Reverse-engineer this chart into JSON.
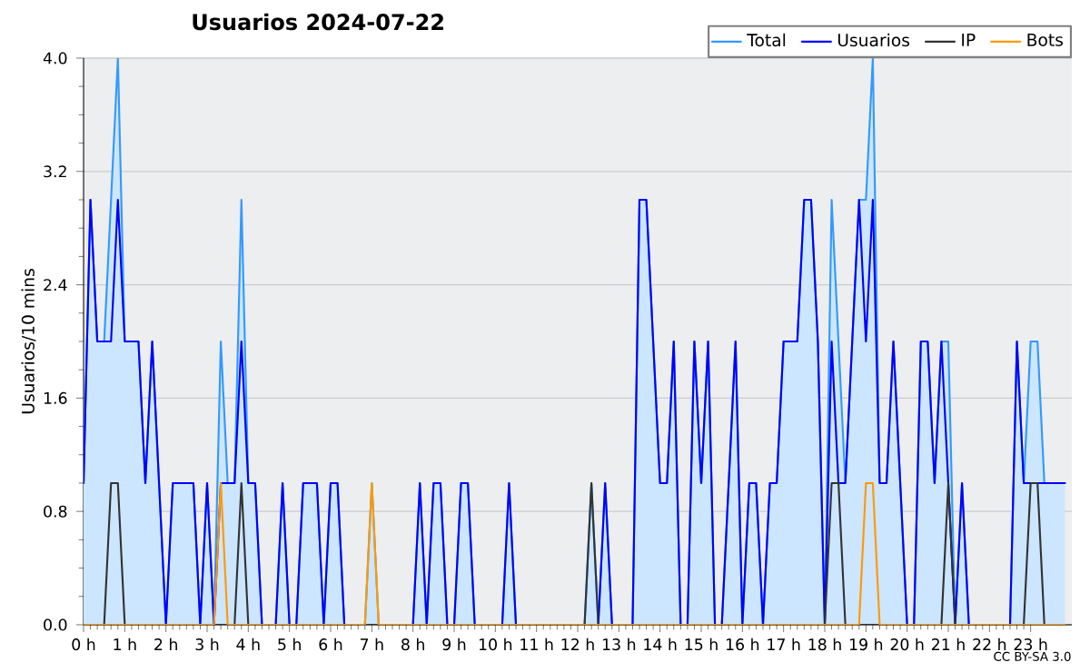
{
  "chart_data": {
    "type": "line",
    "title": "Usuarios 2024-07-22",
    "ylabel": "Usuarios/10 mins",
    "x": [
      0,
      0.167,
      0.333,
      0.5,
      0.667,
      0.833,
      1,
      1.167,
      1.333,
      1.5,
      1.667,
      1.833,
      2,
      2.167,
      2.333,
      2.5,
      2.667,
      2.833,
      3,
      3.167,
      3.333,
      3.5,
      3.667,
      3.833,
      4,
      4.167,
      4.333,
      4.5,
      4.667,
      4.833,
      5,
      5.167,
      5.333,
      5.5,
      5.667,
      5.833,
      6,
      6.167,
      6.333,
      6.5,
      6.667,
      6.833,
      7,
      7.167,
      7.333,
      7.5,
      7.667,
      7.833,
      8,
      8.167,
      8.333,
      8.5,
      8.667,
      8.833,
      9,
      9.167,
      9.333,
      9.5,
      9.667,
      9.833,
      10,
      10.167,
      10.333,
      10.5,
      10.667,
      10.833,
      11,
      11.167,
      11.333,
      11.5,
      11.667,
      11.833,
      12,
      12.167,
      12.333,
      12.5,
      12.667,
      12.833,
      13,
      13.167,
      13.333,
      13.5,
      13.667,
      13.833,
      14,
      14.167,
      14.333,
      14.5,
      14.667,
      14.833,
      15,
      15.167,
      15.333,
      15.5,
      15.667,
      15.833,
      16,
      16.167,
      16.333,
      16.5,
      16.667,
      16.833,
      17,
      17.167,
      17.333,
      17.5,
      17.667,
      17.833,
      18,
      18.167,
      18.333,
      18.5,
      18.667,
      18.833,
      19,
      19.167,
      19.333,
      19.5,
      19.667,
      19.833,
      20,
      20.167,
      20.333,
      20.5,
      20.667,
      20.833,
      21,
      21.167,
      21.333,
      21.5,
      21.667,
      21.833,
      22,
      22.167,
      22.333,
      22.5,
      22.667,
      22.833,
      23,
      23.167,
      23.333,
      23.5,
      23.667,
      23.833
    ],
    "xlim": [
      0,
      24
    ],
    "xticks": [
      {
        "value": 0,
        "label": "0 h"
      },
      {
        "value": 1,
        "label": "1 h"
      },
      {
        "value": 2,
        "label": "2 h"
      },
      {
        "value": 3,
        "label": "3 h"
      },
      {
        "value": 4,
        "label": "4 h"
      },
      {
        "value": 5,
        "label": "5 h"
      },
      {
        "value": 6,
        "label": "6 h"
      },
      {
        "value": 7,
        "label": "7 h"
      },
      {
        "value": 8,
        "label": "8 h"
      },
      {
        "value": 9,
        "label": "9 h"
      },
      {
        "value": 10,
        "label": "10 h"
      },
      {
        "value": 11,
        "label": "11 h"
      },
      {
        "value": 12,
        "label": "12 h"
      },
      {
        "value": 13,
        "label": "13 h"
      },
      {
        "value": 14,
        "label": "14 h"
      },
      {
        "value": 15,
        "label": "15 h"
      },
      {
        "value": 16,
        "label": "16 h"
      },
      {
        "value": 17,
        "label": "17 h"
      },
      {
        "value": 18,
        "label": "18 h"
      },
      {
        "value": 19,
        "label": "19 h"
      },
      {
        "value": 20,
        "label": "20 h"
      },
      {
        "value": 21,
        "label": "21 h"
      },
      {
        "value": 22,
        "label": "22 h"
      },
      {
        "value": 23,
        "label": "23 h"
      }
    ],
    "ylim": [
      0,
      4
    ],
    "yticks": [
      {
        "value": 0,
        "label": "0.0"
      },
      {
        "value": 0.8,
        "label": "0.8"
      },
      {
        "value": 1.6,
        "label": "1.6"
      },
      {
        "value": 2.4,
        "label": "2.4"
      },
      {
        "value": 3.2,
        "label": "3.2"
      },
      {
        "value": 4,
        "label": "4.0"
      }
    ],
    "grid": "y",
    "legend": "top right",
    "series": [
      {
        "name": "Total",
        "type": "area",
        "color": "#3399ff",
        "values": [
          1,
          3,
          2,
          2,
          3,
          4,
          2,
          2,
          2,
          1,
          2,
          1,
          0,
          1,
          1,
          1,
          1,
          0,
          1,
          0,
          2,
          1,
          1,
          3,
          1,
          1,
          0,
          0,
          0,
          1,
          0,
          0,
          1,
          1,
          1,
          0,
          1,
          1,
          0,
          0,
          0,
          0,
          1,
          0,
          0,
          0,
          0,
          0,
          0,
          1,
          0,
          1,
          1,
          0,
          0,
          1,
          1,
          0,
          0,
          0,
          0,
          0,
          1,
          0,
          0,
          0,
          0,
          0,
          0,
          0,
          0,
          0,
          0,
          0,
          1,
          0,
          1,
          0,
          0,
          0,
          0,
          3,
          3,
          2,
          1,
          1,
          2,
          0,
          0,
          2,
          1,
          2,
          0,
          0,
          1,
          2,
          0,
          1,
          1,
          0,
          1,
          1,
          2,
          2,
          2,
          3,
          3,
          2,
          0,
          3,
          2,
          1,
          2,
          3,
          3,
          4,
          1,
          1,
          2,
          1,
          0,
          0,
          2,
          2,
          1,
          2,
          2,
          0,
          1,
          0,
          0,
          0,
          0,
          0,
          0,
          0,
          2,
          1,
          2,
          2,
          1,
          1,
          1,
          1
        ]
      },
      {
        "name": "Usuarios",
        "type": "line",
        "color": "#0000ff",
        "values": [
          1,
          3,
          2,
          2,
          2,
          3,
          2,
          2,
          2,
          1,
          2,
          1,
          0,
          1,
          1,
          1,
          1,
          0,
          1,
          0,
          1,
          1,
          1,
          2,
          1,
          1,
          0,
          0,
          0,
          1,
          0,
          0,
          1,
          1,
          1,
          0,
          1,
          1,
          0,
          0,
          0,
          0,
          0,
          0,
          0,
          0,
          0,
          0,
          0,
          1,
          0,
          1,
          1,
          0,
          0,
          1,
          1,
          0,
          0,
          0,
          0,
          0,
          1,
          0,
          0,
          0,
          0,
          0,
          0,
          0,
          0,
          0,
          0,
          0,
          0,
          0,
          1,
          0,
          0,
          0,
          0,
          3,
          3,
          2,
          1,
          1,
          2,
          0,
          0,
          2,
          1,
          2,
          0,
          0,
          1,
          2,
          0,
          1,
          1,
          0,
          1,
          1,
          2,
          2,
          2,
          3,
          3,
          2,
          0,
          2,
          1,
          1,
          2,
          3,
          2,
          3,
          1,
          1,
          2,
          1,
          0,
          0,
          2,
          2,
          1,
          2,
          1,
          0,
          1,
          0,
          0,
          0,
          0,
          0,
          0,
          0,
          2,
          1,
          1,
          1,
          1,
          1,
          1,
          1
        ]
      },
      {
        "name": "IP",
        "type": "line",
        "color": "#333333",
        "values": [
          0,
          0,
          0,
          0,
          1,
          1,
          0,
          0,
          0,
          0,
          0,
          0,
          0,
          0,
          0,
          0,
          0,
          0,
          0,
          0,
          0,
          0,
          0,
          1,
          0,
          0,
          0,
          0,
          0,
          0,
          0,
          0,
          0,
          0,
          0,
          0,
          0,
          0,
          0,
          0,
          0,
          0,
          0,
          0,
          0,
          0,
          0,
          0,
          0,
          0,
          0,
          0,
          0,
          0,
          0,
          0,
          0,
          0,
          0,
          0,
          0,
          0,
          0,
          0,
          0,
          0,
          0,
          0,
          0,
          0,
          0,
          0,
          0,
          0,
          1,
          0,
          0,
          0,
          0,
          0,
          0,
          0,
          0,
          0,
          0,
          0,
          0,
          0,
          0,
          0,
          0,
          0,
          0,
          0,
          0,
          0,
          0,
          0,
          0,
          0,
          0,
          0,
          0,
          0,
          0,
          0,
          0,
          0,
          0,
          1,
          1,
          0,
          0,
          0,
          0,
          0,
          0,
          0,
          0,
          0,
          0,
          0,
          0,
          0,
          0,
          0,
          1,
          0,
          0,
          0,
          0,
          0,
          0,
          0,
          0,
          0,
          0,
          0,
          1,
          1,
          0,
          0,
          0,
          0
        ]
      },
      {
        "name": "Bots",
        "type": "line",
        "color": "#ff9900",
        "values": [
          0,
          0,
          0,
          0,
          0,
          0,
          0,
          0,
          0,
          0,
          0,
          0,
          0,
          0,
          0,
          0,
          0,
          0,
          0,
          0,
          1,
          0,
          0,
          0,
          0,
          0,
          0,
          0,
          0,
          0,
          0,
          0,
          0,
          0,
          0,
          0,
          0,
          0,
          0,
          0,
          0,
          0,
          1,
          0,
          0,
          0,
          0,
          0,
          0,
          0,
          0,
          0,
          0,
          0,
          0,
          0,
          0,
          0,
          0,
          0,
          0,
          0,
          0,
          0,
          0,
          0,
          0,
          0,
          0,
          0,
          0,
          0,
          0,
          0,
          0,
          0,
          0,
          0,
          0,
          0,
          0,
          0,
          0,
          0,
          0,
          0,
          0,
          0,
          0,
          0,
          0,
          0,
          0,
          0,
          0,
          0,
          0,
          0,
          0,
          0,
          0,
          0,
          0,
          0,
          0,
          0,
          0,
          0,
          0,
          0,
          0,
          0,
          0,
          0,
          1,
          1,
          0,
          0,
          0,
          0,
          0,
          0,
          0,
          0,
          0,
          0,
          0,
          0,
          0,
          0,
          0,
          0,
          0,
          0,
          0,
          0,
          0,
          0,
          0,
          0,
          0,
          0,
          0,
          0
        ]
      }
    ],
    "annotations": [
      "CC BY-SA 3.0"
    ]
  }
}
